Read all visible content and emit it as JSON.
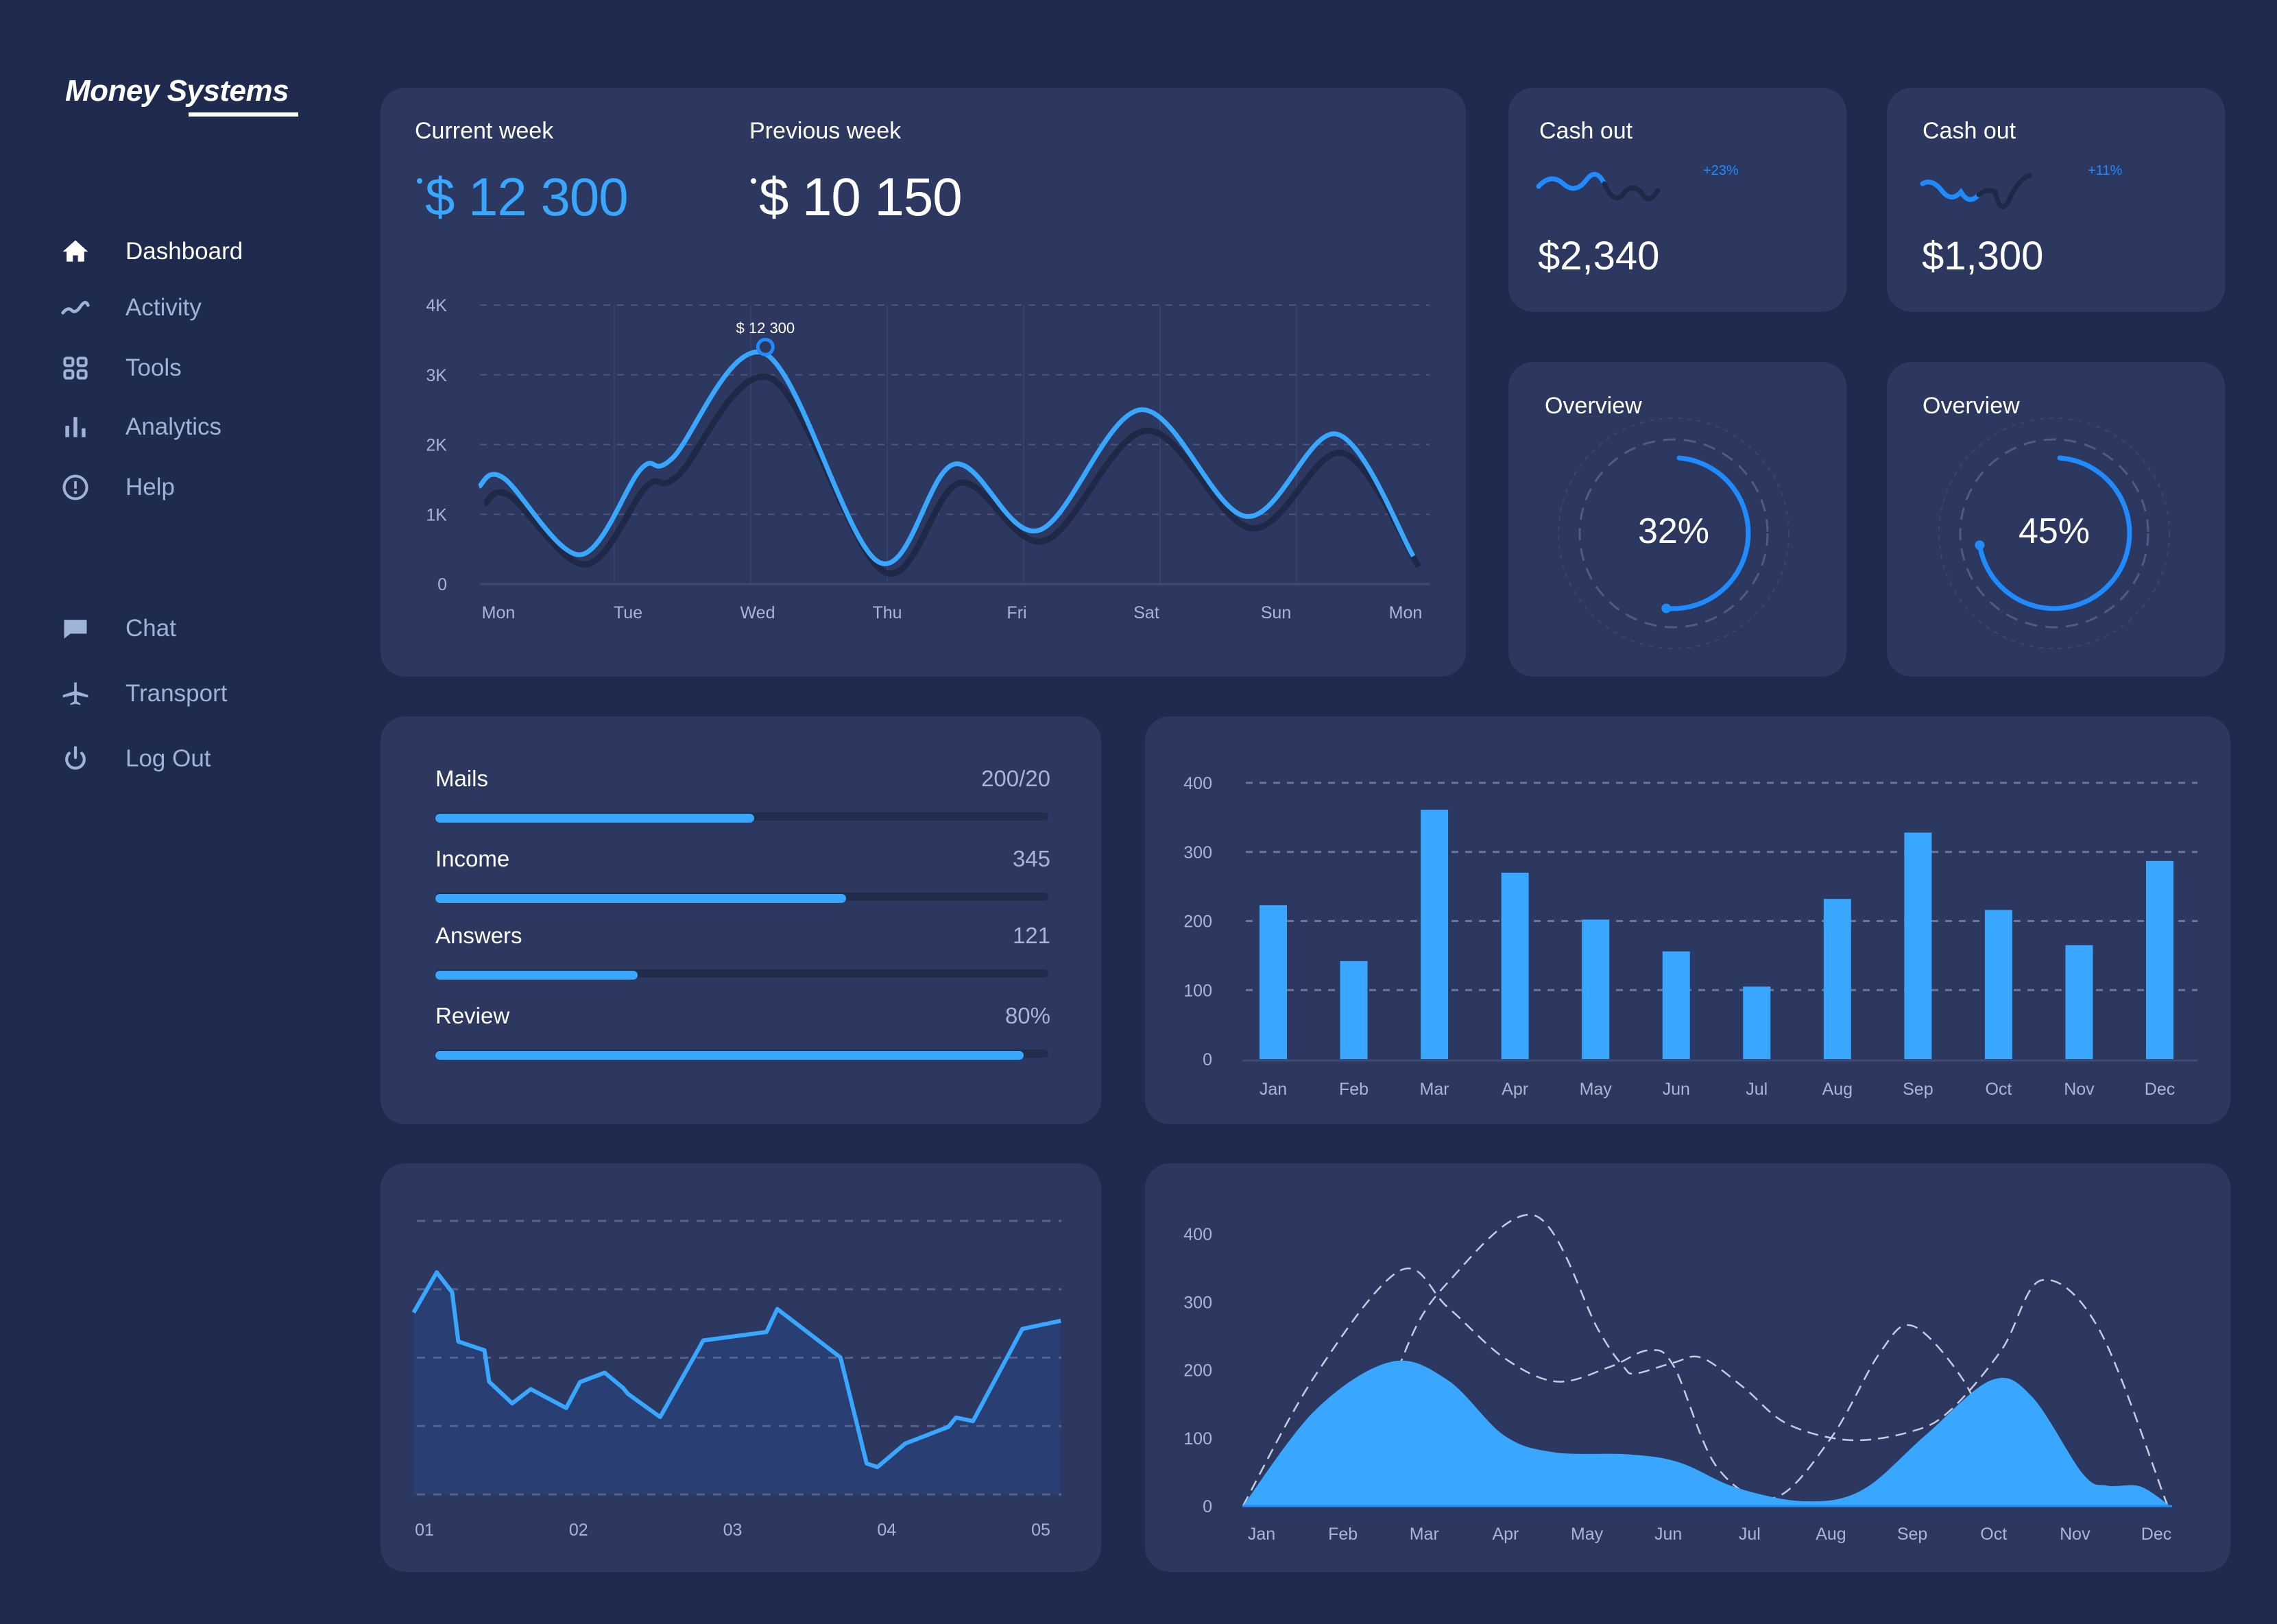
{
  "brand": {
    "name": "Money Systems"
  },
  "sidebar": {
    "items": [
      {
        "label": "Dashboard",
        "icon": "home-icon",
        "active": true
      },
      {
        "label": "Activity",
        "icon": "activity-icon"
      },
      {
        "label": "Tools",
        "icon": "grid-icon"
      },
      {
        "label": "Analytics",
        "icon": "bar-chart-icon"
      },
      {
        "label": "Help",
        "icon": "alert-circle-icon"
      },
      {
        "label": "Chat",
        "icon": "chat-icon"
      },
      {
        "label": "Transport",
        "icon": "airplane-icon"
      },
      {
        "label": "Log Out",
        "icon": "power-icon"
      }
    ]
  },
  "colors": {
    "background": "#1e2a4e",
    "card": "#2c3860",
    "accent": "#39a6ff",
    "shadow_line": "#1f2846"
  },
  "weekly": {
    "current_label": "Current week",
    "current_value": "$ 12 300",
    "previous_label": "Previous week",
    "previous_value": "$ 10 150",
    "tooltip": "$ 12 300"
  },
  "cash_out": [
    {
      "title": "Cash out",
      "value": "$2,340",
      "change": "+23%"
    },
    {
      "title": "Cash out",
      "value": "$1,300",
      "change": "+11%"
    }
  ],
  "overview": [
    {
      "title": "Overview",
      "percent_label": "32%",
      "percent": 32
    },
    {
      "title": "Overview",
      "percent_label": "45%",
      "percent": 45
    }
  ],
  "progress": [
    {
      "label": "Mails",
      "value": "200/20",
      "fill": 0.52
    },
    {
      "label": "Income",
      "value": "345",
      "fill": 0.67
    },
    {
      "label": "Answers",
      "value": "121",
      "fill": 0.33
    },
    {
      "label": "Review",
      "value": "80%",
      "fill": 0.96
    }
  ],
  "chart_data": [
    {
      "type": "line",
      "categories": [
        "Mon",
        "Tue",
        "Wed",
        "Thu",
        "Fri",
        "Sat",
        "Sun",
        "Mon"
      ],
      "yticks": [
        "0",
        "1K",
        "2K",
        "3K",
        "4K"
      ],
      "ylim": [
        0,
        4000
      ],
      "grid": true,
      "series": [
        {
          "name": "Current week",
          "points": [
            [
              -0.15,
              1400
            ],
            [
              0.04,
              1520
            ],
            [
              0.63,
              420
            ],
            [
              1.1,
              1650
            ],
            [
              1.34,
              1800
            ],
            [
              2.06,
              3300
            ],
            [
              2.93,
              320
            ],
            [
              3.52,
              1720
            ],
            [
              4.17,
              770
            ],
            [
              4.96,
              2500
            ],
            [
              5.77,
              970
            ],
            [
              6.47,
              2150
            ],
            [
              7.06,
              400
            ]
          ]
        },
        {
          "name": "Previous week",
          "points": [
            [
              -0.15,
              1150
            ],
            [
              0.04,
              1270
            ],
            [
              0.63,
              280
            ],
            [
              1.1,
              1400
            ],
            [
              1.34,
              1550
            ],
            [
              2.06,
              2950
            ],
            [
              2.93,
              180
            ],
            [
              3.52,
              1450
            ],
            [
              4.17,
              620
            ],
            [
              4.96,
              2200
            ],
            [
              5.77,
              800
            ],
            [
              6.47,
              1880
            ],
            [
              7.06,
              250
            ]
          ]
        }
      ],
      "annotation": {
        "x": 2.06,
        "y": 3300,
        "text": "$ 12 300"
      }
    },
    {
      "type": "bar",
      "categories": [
        "Jan",
        "Feb",
        "Mar",
        "Apr",
        "May",
        "Jun",
        "Jul",
        "Aug",
        "Sep",
        "Oct",
        "Nov",
        "Dec"
      ],
      "values": [
        223,
        142,
        361,
        270,
        202,
        156,
        105,
        232,
        328,
        216,
        165,
        287
      ],
      "yticks": [
        "0",
        "100",
        "200",
        "300",
        "400"
      ],
      "ylim": [
        0,
        400
      ],
      "grid": true
    },
    {
      "type": "area",
      "categories": [
        "01",
        "02",
        "03",
        "04",
        "05"
      ],
      "ylim": [
        0,
        100
      ],
      "grid": true,
      "points": [
        [
          0.93,
          66.5
        ],
        [
          1.08,
          81.2
        ],
        [
          1.18,
          73.9
        ],
        [
          1.22,
          55.9
        ],
        [
          1.39,
          52.7
        ],
        [
          1.42,
          41.2
        ],
        [
          1.57,
          33.3
        ],
        [
          1.69,
          38.5
        ],
        [
          1.92,
          31.6
        ],
        [
          2.01,
          41.1
        ],
        [
          2.17,
          44.5
        ],
        [
          2.29,
          38.9
        ],
        [
          2.32,
          36.8
        ],
        [
          2.53,
          28.3
        ],
        [
          2.81,
          56.3
        ],
        [
          3.22,
          59.4
        ],
        [
          3.29,
          67.8
        ],
        [
          3.7,
          50.1
        ],
        [
          3.87,
          11.3
        ],
        [
          3.94,
          10.0
        ],
        [
          4.12,
          18.6
        ],
        [
          4.4,
          24.7
        ],
        [
          4.45,
          28.1
        ],
        [
          4.56,
          26.8
        ],
        [
          4.88,
          60.5
        ],
        [
          5.13,
          63.5
        ]
      ]
    },
    {
      "type": "area",
      "categories": [
        "Jan",
        "Feb",
        "Mar",
        "Apr",
        "May",
        "Jun",
        "Jul",
        "Aug",
        "Sep",
        "Oct",
        "Nov",
        "Dec"
      ],
      "yticks": [
        "0",
        "100",
        "200",
        "300",
        "400"
      ],
      "ylim": [
        0,
        400
      ],
      "series": [
        {
          "style": "filled",
          "points": [
            [
              -0.23,
              0
            ],
            [
              0.66,
              141
            ],
            [
              1.59,
              212
            ],
            [
              2.29,
              185
            ],
            [
              2.98,
              104
            ],
            [
              3.6,
              79
            ],
            [
              4.52,
              76
            ],
            [
              5.14,
              64
            ],
            [
              5.84,
              27
            ],
            [
              6.69,
              7
            ],
            [
              7.39,
              24
            ],
            [
              8.16,
              104
            ],
            [
              8.97,
              185
            ],
            [
              9.47,
              161
            ],
            [
              10.1,
              47
            ],
            [
              10.4,
              30
            ],
            [
              10.8,
              29
            ],
            [
              11.17,
              0
            ]
          ]
        },
        {
          "style": "dashed",
          "points": [
            [
              -0.23,
              0
            ],
            [
              0.66,
              192
            ],
            [
              1.7,
              346
            ],
            [
              2.29,
              292
            ],
            [
              2.98,
              218
            ],
            [
              3.63,
              183
            ],
            [
              4.29,
              205
            ],
            [
              4.76,
              229
            ],
            [
              5.07,
              205
            ],
            [
              5.6,
              57
            ],
            [
              6.3,
              12
            ],
            [
              7.0,
              100
            ],
            [
              7.6,
              225
            ],
            [
              8.0,
              265
            ],
            [
              8.6,
              190
            ],
            [
              9.0,
              90
            ],
            [
              9.3,
              0
            ]
          ]
        },
        {
          "style": "dashed",
          "points": [
            [
              1.2,
              0
            ],
            [
              1.74,
              220
            ],
            [
              2.3,
              330
            ],
            [
              3.36,
              427
            ],
            [
              4.14,
              259
            ],
            [
              4.45,
              205
            ],
            [
              4.6,
              195
            ],
            [
              5.07,
              211
            ],
            [
              5.41,
              218
            ],
            [
              5.92,
              175
            ],
            [
              6.46,
              121
            ],
            [
              7.23,
              97
            ],
            [
              8.0,
              110
            ],
            [
              8.47,
              141
            ],
            [
              9.1,
              230
            ],
            [
              9.59,
              332
            ],
            [
              10.3,
              259
            ],
            [
              11.14,
              0
            ]
          ]
        }
      ]
    }
  ]
}
